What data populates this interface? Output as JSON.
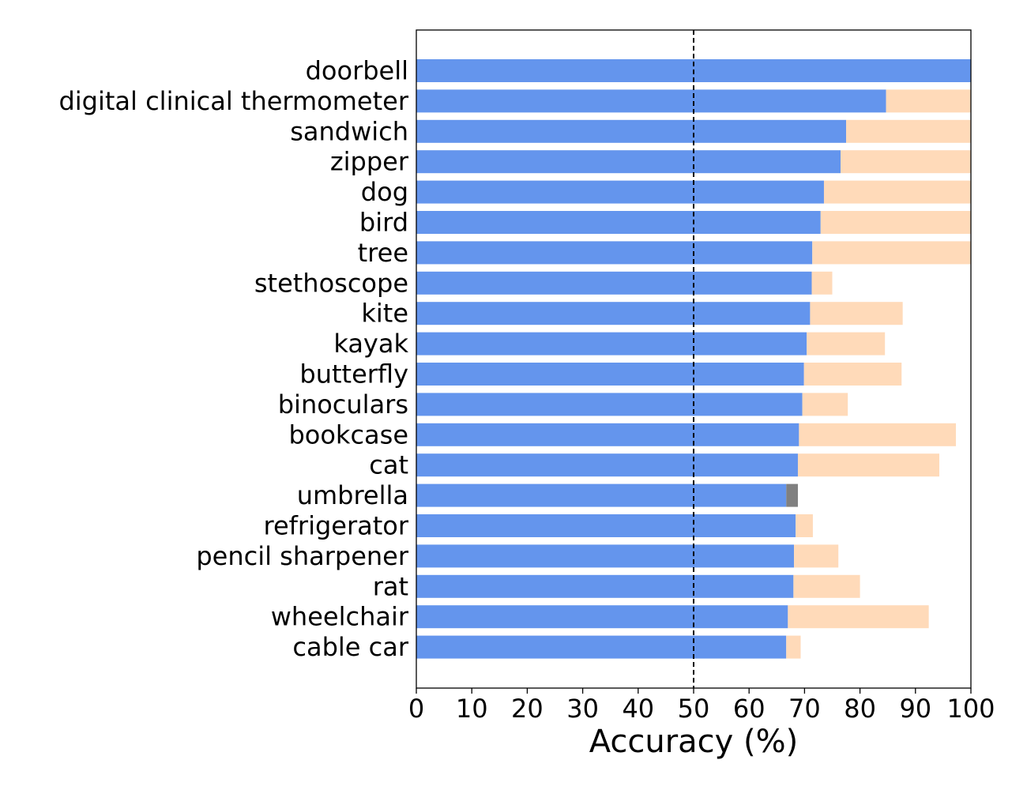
{
  "chart_data": {
    "type": "bar",
    "orientation": "horizontal",
    "stacked": true,
    "xlabel": "Accuracy (%)",
    "xlim": [
      0,
      100
    ],
    "xticks": [
      0,
      10,
      20,
      30,
      40,
      50,
      60,
      70,
      80,
      90,
      100
    ],
    "reference_line": {
      "x": 50,
      "style": "dashed"
    },
    "grid": false,
    "categories": [
      "doorbell",
      "digital clinical thermometer",
      "sandwich",
      "zipper",
      "dog",
      "bird",
      "tree",
      "stethoscope",
      "kite",
      "kayak",
      "butterfly",
      "binoculars",
      "bookcase",
      "cat",
      "umbrella",
      "refrigerator",
      "pencil sharpener",
      "rat",
      "wheelchair",
      "cable car"
    ],
    "series": [
      {
        "color": "#6495ED",
        "values": [
          100,
          84.7,
          77.5,
          76.5,
          73.5,
          72.9,
          71.4,
          71.3,
          71.0,
          70.4,
          69.9,
          69.6,
          69.0,
          68.8,
          66.7,
          68.4,
          68.1,
          68.0,
          67.0,
          66.7
        ]
      },
      {
        "color": "#FFDAB9",
        "values": [
          0,
          15.3,
          22.5,
          23.5,
          26.5,
          27.1,
          28.6,
          3.7,
          16.7,
          14.1,
          17.6,
          8.2,
          28.3,
          25.5,
          0,
          3.1,
          8.0,
          12.0,
          25.4,
          2.6
        ]
      },
      {
        "color": "#808080",
        "values": [
          0,
          0,
          0,
          0,
          0,
          0,
          0,
          0,
          0,
          0,
          0,
          0,
          0,
          0,
          2.1,
          0,
          0,
          0,
          0,
          0
        ]
      }
    ]
  }
}
